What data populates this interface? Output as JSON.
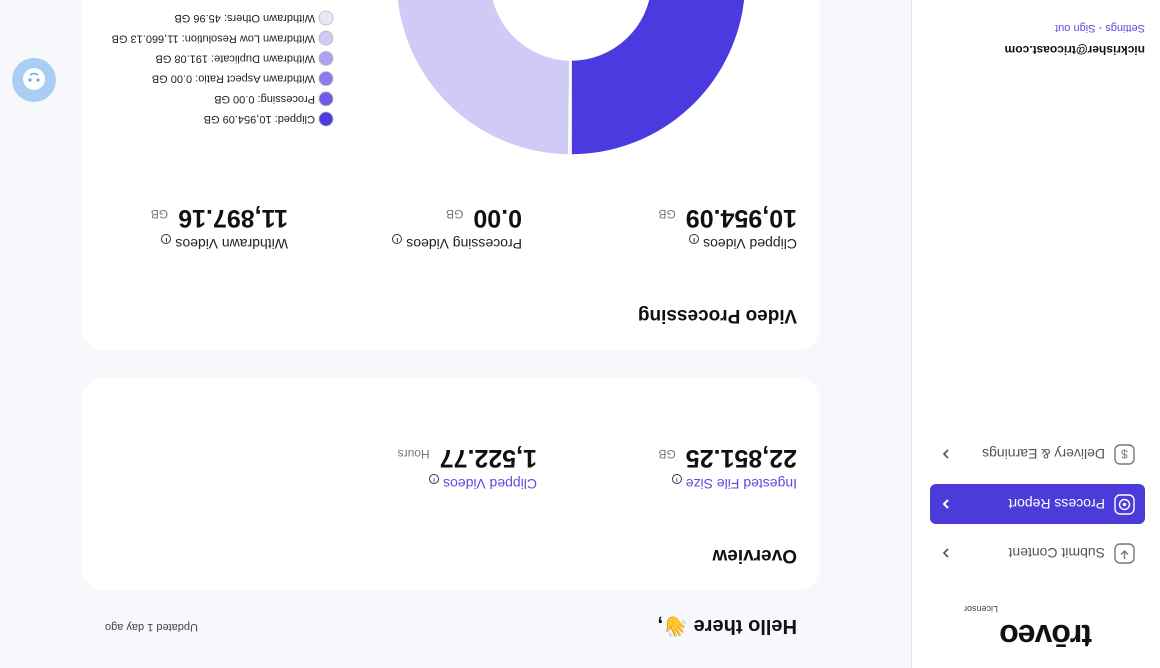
{
  "sidebar": {
    "logo": "trōveo",
    "logo_sub": "Licensor",
    "nav": [
      "Submit Content",
      "Process Report",
      "Delivery & Earnings"
    ],
    "email": "nickrisher@tricoast.com",
    "account_links": "Settings - Sign out"
  },
  "header": {
    "greeting": "Hello there 👋,",
    "updated": "Updated 1 day ago"
  },
  "overview": {
    "title": "Overview",
    "stats": [
      {
        "label": "Ingested File Size",
        "value": "22,851.25",
        "unit": "GB"
      },
      {
        "label": "Clipped Videos",
        "value": "1,522.77",
        "unit": "Hours"
      }
    ]
  },
  "video_processing": {
    "title": "Video Processing",
    "stats": [
      {
        "label": "Clipped Videos",
        "value": "10,954.09",
        "unit": "GB"
      },
      {
        "label": "Processing Videos",
        "value": "0.00",
        "unit": "GB"
      },
      {
        "label": "Withdrawn Videos",
        "value": "11,897.16",
        "unit": "GB"
      }
    ]
  },
  "chart_data": {
    "type": "donut",
    "categories": [
      "Clipped: 10,954.09 GB",
      "Processing: 0.00 GB",
      "Withdrawn Aspect Ratio: 0.00 GB",
      "Withdrawn Duplicate: 191.08 GB",
      "Withdrawn Low Resolution: 11,660.13 GB",
      "Withdrawn Others: 45.96 GB"
    ],
    "values": [
      10954.09,
      0,
      0,
      191.08,
      11660.13,
      45.96
    ],
    "colors": [
      "#4a3ae0",
      "#6c5ce7",
      "#8a7deb",
      "#aca2f1",
      "#cfcaf6",
      "#e9e7f7"
    ]
  }
}
